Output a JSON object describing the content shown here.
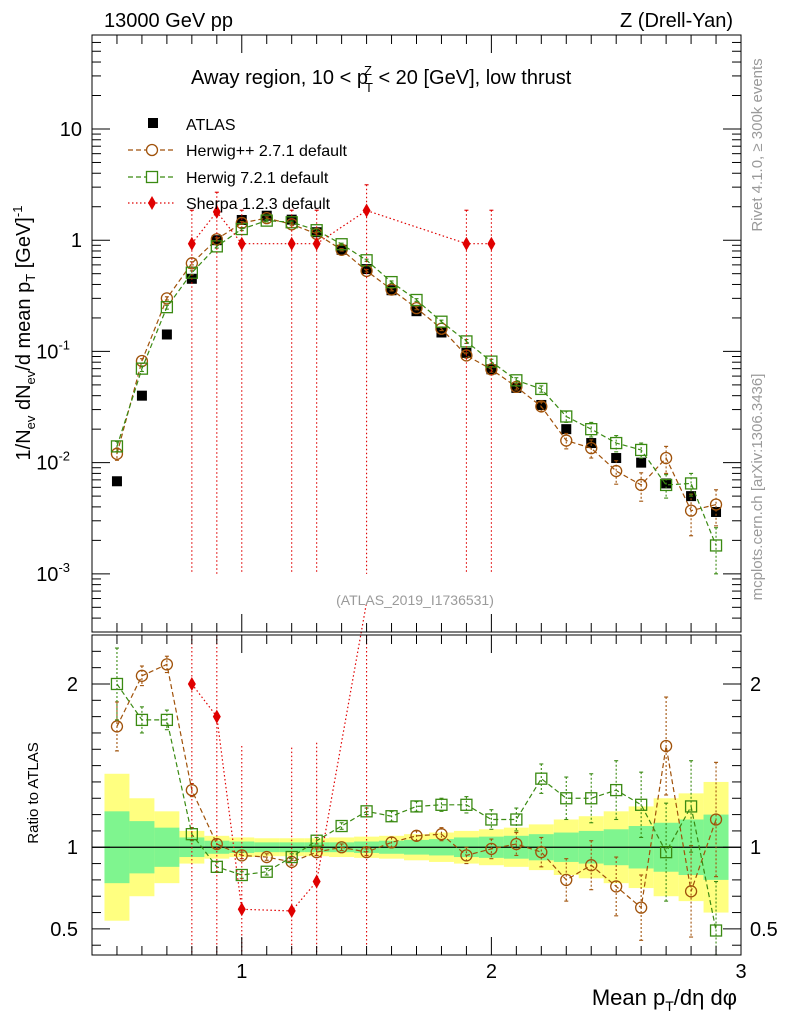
{
  "header": {
    "left": "13000 GeV pp",
    "right": "Z (Drell-Yan)"
  },
  "side": {
    "rivet": "Rivet 4.1.0, ≥ 300k events",
    "site": "mcplots.cern.ch [arXiv:1306.3436]"
  },
  "colors": {
    "atlas": "#000000",
    "herwigpp": "#a0520a",
    "herwig7": "#3a8a12",
    "sherpa": "#e00000",
    "band_inner": "#7ff58f",
    "band_outer": "#ffff80"
  },
  "chart_data": {
    "type": "scatter",
    "title": "Away region, 10 < p_T^Z < 20 [GeV], low thrust",
    "title_parts": {
      "pre": "Away region, 10 < p",
      "sub": "T",
      "sup": "Z",
      "post": " < 20 [GeV], low thrust"
    },
    "analysis": "(ATLAS_2019_I1736531)",
    "xlabel": "Mean p_T/dη dφ",
    "xlabel_parts": {
      "pre": "Mean p",
      "sub": "T",
      "post": "/dη dφ"
    },
    "ylabel": "1/N_ev dN_ev/d mean p_T [GeV]^-1",
    "ylabel_parts": {
      "a": "1/N",
      "a_sub": "ev",
      "b": " dN",
      "b_sub": "ev",
      "c": "/d mean p",
      "c_sub": "T",
      "d": " [GeV]",
      "d_sup": "-1"
    },
    "ratio_ylabel": "Ratio to ATLAS",
    "xlim": [
      0.4,
      3.0
    ],
    "ylim_main": [
      0.0003,
      70
    ],
    "ylim_ratio": [
      0.34,
      2.3
    ],
    "yscale_main": "log",
    "x_ticks": [
      {
        "v": 1,
        "label": "1"
      },
      {
        "v": 2,
        "label": "2"
      },
      {
        "v": 3,
        "label": "3"
      }
    ],
    "y_ticks_main": [
      {
        "exp": -3,
        "label_base": "10",
        "label_sup": "-3"
      },
      {
        "exp": -2,
        "label_base": "10",
        "label_sup": "-2"
      },
      {
        "exp": -1,
        "label_base": "10",
        "label_sup": "-1"
      },
      {
        "exp": 0,
        "label_base": "1",
        "label_sup": ""
      },
      {
        "exp": 1,
        "label_base": "10",
        "label_sup": ""
      }
    ],
    "y_ticks_ratio": [
      {
        "v": 0.5,
        "label": "0.5"
      },
      {
        "v": 1,
        "label": "1"
      },
      {
        "v": 2,
        "label": "2"
      }
    ],
    "legend_position": "top-left",
    "x": [
      0.5,
      0.6,
      0.7,
      0.8,
      0.9,
      1.0,
      1.1,
      1.2,
      1.3,
      1.4,
      1.5,
      1.6,
      1.7,
      1.8,
      1.9,
      2.0,
      2.1,
      2.2,
      2.3,
      2.4,
      2.5,
      2.6,
      2.7,
      2.8,
      2.9
    ],
    "series": [
      {
        "name": "ATLAS",
        "key": "atlas",
        "marker": "filled-square",
        "values": [
          0.0068,
          0.04,
          0.142,
          0.45,
          1.0,
          1.52,
          1.66,
          1.53,
          1.18,
          0.82,
          0.55,
          0.355,
          0.23,
          0.148,
          0.097,
          0.069,
          0.047,
          0.033,
          0.02,
          0.015,
          0.011,
          0.01,
          0.0065,
          0.005,
          0.0036
        ]
      },
      {
        "name": "Herwig++ 2.7.1 default",
        "key": "herwigpp",
        "marker": "open-circle",
        "line": "dashed",
        "values": [
          0.012,
          0.082,
          0.3,
          0.62,
          1.02,
          1.43,
          1.58,
          1.39,
          1.14,
          0.82,
          0.53,
          0.36,
          0.245,
          0.16,
          0.092,
          0.069,
          0.048,
          0.032,
          0.0158,
          0.0135,
          0.0084,
          0.0063,
          0.011,
          0.0037,
          0.0042
        ],
        "errors": [
          0.0015,
          0.004,
          0.01,
          0.02,
          0.03,
          0.04,
          0.04,
          0.04,
          0.03,
          0.02,
          0.015,
          0.01,
          0.008,
          0.006,
          0.005,
          0.004,
          0.003,
          0.003,
          0.0025,
          0.0025,
          0.002,
          0.0018,
          0.003,
          0.0015,
          0.0015
        ],
        "ratio": [
          1.74,
          2.05,
          2.12,
          1.35,
          1.02,
          0.95,
          0.94,
          0.91,
          0.97,
          1.0,
          0.97,
          1.03,
          1.07,
          1.08,
          0.95,
          0.99,
          1.02,
          0.97,
          0.8,
          0.89,
          0.76,
          0.63,
          1.62,
          0.73,
          1.17
        ],
        "ratio_errors": [
          0.15,
          0.06,
          0.05,
          0.04,
          0.03,
          0.02,
          0.02,
          0.02,
          0.02,
          0.02,
          0.02,
          0.03,
          0.03,
          0.04,
          0.05,
          0.06,
          0.07,
          0.09,
          0.13,
          0.15,
          0.18,
          0.2,
          0.3,
          0.28,
          0.35
        ]
      },
      {
        "name": "Herwig 7.2.1 default",
        "key": "herwig7",
        "marker": "open-square",
        "line": "dashed",
        "values": [
          0.014,
          0.07,
          0.25,
          0.51,
          0.88,
          1.26,
          1.5,
          1.45,
          1.23,
          0.92,
          0.66,
          0.42,
          0.29,
          0.185,
          0.123,
          0.081,
          0.055,
          0.046,
          0.026,
          0.02,
          0.015,
          0.013,
          0.0063,
          0.0065,
          0.0018
        ],
        "errors": [
          0.0015,
          0.004,
          0.01,
          0.02,
          0.03,
          0.04,
          0.04,
          0.04,
          0.03,
          0.02,
          0.015,
          0.01,
          0.008,
          0.006,
          0.005,
          0.004,
          0.003,
          0.003,
          0.003,
          0.003,
          0.0025,
          0.002,
          0.0015,
          0.0015,
          0.0008
        ],
        "ratio": [
          2.0,
          1.78,
          1.78,
          1.08,
          0.88,
          0.83,
          0.85,
          0.94,
          1.04,
          1.13,
          1.22,
          1.19,
          1.25,
          1.26,
          1.26,
          1.17,
          1.17,
          1.42,
          1.3,
          1.3,
          1.35,
          1.26,
          0.97,
          1.25,
          0.49
        ],
        "ratio_errors": [
          0.22,
          0.08,
          0.06,
          0.04,
          0.03,
          0.02,
          0.02,
          0.02,
          0.02,
          0.02,
          0.02,
          0.03,
          0.03,
          0.04,
          0.05,
          0.06,
          0.07,
          0.09,
          0.13,
          0.15,
          0.18,
          0.2,
          0.3,
          0.28,
          0.3
        ]
      },
      {
        "name": "Sherpa 1.2.3 default",
        "key": "sherpa",
        "marker": "filled-diamond",
        "line": "dotted",
        "x": [
          0.8,
          0.9,
          1.0,
          1.2,
          1.3,
          1.5,
          1.9,
          2.0
        ],
        "values": [
          0.93,
          1.8,
          0.93,
          0.93,
          0.93,
          1.85,
          0.93,
          0.93
        ],
        "err_low": [
          0.929,
          1.799,
          0.929,
          0.929,
          0.929,
          1.849,
          0.929,
          0.929
        ],
        "err_high": [
          0.93,
          0.9,
          0.93,
          0.93,
          0.93,
          1.3,
          0.93,
          0.93
        ],
        "ratio": [
          2.0,
          1.8,
          0.62,
          0.61,
          0.79,
          3.4
        ],
        "ratio_x": [
          0.8,
          0.9,
          1.0,
          1.2,
          1.3,
          1.5
        ],
        "ratio_err_low": [
          1.66,
          1.46,
          0.28,
          0.27,
          0.45,
          3.0
        ],
        "ratio_err_high": [
          1.0,
          1.0,
          1.0,
          1.0,
          0.85,
          1.0
        ]
      }
    ],
    "bands": {
      "x_edges": [
        0.45,
        0.55,
        0.65,
        0.75,
        0.85,
        0.95,
        1.05,
        1.15,
        1.25,
        1.35,
        1.45,
        1.55,
        1.65,
        1.75,
        1.85,
        1.95,
        2.05,
        2.15,
        2.25,
        2.35,
        2.45,
        2.55,
        2.65,
        2.75,
        2.85,
        2.95
      ],
      "inner": [
        0.22,
        0.16,
        0.12,
        0.06,
        0.04,
        0.035,
        0.03,
        0.03,
        0.03,
        0.03,
        0.035,
        0.04,
        0.045,
        0.05,
        0.06,
        0.065,
        0.07,
        0.08,
        0.09,
        0.1,
        0.11,
        0.13,
        0.15,
        0.17,
        0.2
      ],
      "outer": [
        0.45,
        0.3,
        0.22,
        0.1,
        0.07,
        0.06,
        0.055,
        0.055,
        0.055,
        0.06,
        0.065,
        0.07,
        0.08,
        0.09,
        0.1,
        0.11,
        0.12,
        0.14,
        0.17,
        0.19,
        0.22,
        0.25,
        0.3,
        0.33,
        0.4
      ]
    }
  }
}
